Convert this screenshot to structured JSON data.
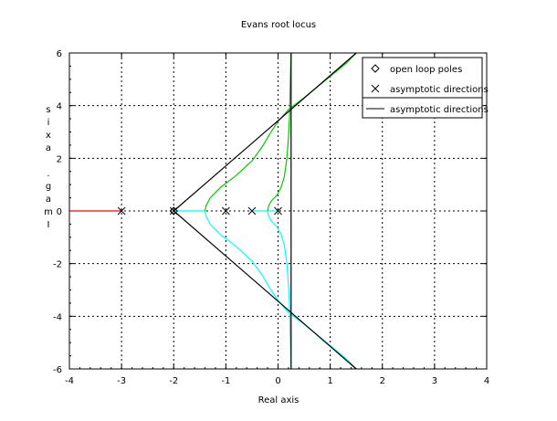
{
  "chart_data": {
    "type": "line",
    "title": "Evans root locus",
    "xlabel": "Real axis",
    "ylabel": "Imag. axis",
    "xlim": [
      -4,
      4
    ],
    "ylim": [
      -6,
      6
    ],
    "x_ticks": [
      "-4",
      "-3",
      "-2",
      "-1",
      "0",
      "1",
      "2",
      "3",
      "4"
    ],
    "y_ticks": [
      "-6",
      "-4",
      "-2",
      "0",
      "2",
      "4",
      "6"
    ],
    "grid": true,
    "legend_position": "top-right",
    "legend": [
      {
        "label": "open loop poles",
        "marker": "diamond"
      },
      {
        "label": "asymptotic directions",
        "marker": "x"
      },
      {
        "label": "asymptotic directions",
        "marker": "line"
      }
    ],
    "open_loop_markers": [
      {
        "x": -3,
        "y": 0
      },
      {
        "x": -2,
        "y": 0
      },
      {
        "x": -1,
        "y": 0
      },
      {
        "x": -0.5,
        "y": 0
      },
      {
        "x": 0,
        "y": 0
      }
    ],
    "series": [
      {
        "color": "#ff0000",
        "x": [
          -4,
          -3
        ],
        "y": [
          0,
          0
        ]
      },
      {
        "color": "#00ffff",
        "x": [
          -2,
          -1.5,
          -1.4
        ],
        "y": [
          0,
          0,
          0
        ]
      },
      {
        "color": "#00ffff",
        "x": [
          -0.5,
          -0.2
        ],
        "y": [
          0,
          0
        ]
      },
      {
        "color": "#00ffff",
        "x": [
          -0.2,
          0
        ],
        "y": [
          0,
          0
        ]
      },
      {
        "color": "#00cc00",
        "x": [
          -1.4,
          -1.38,
          -1.3,
          -1.1,
          -0.8,
          -0.5,
          -0.3,
          -0.15,
          0.0,
          0.2,
          0.5,
          0.9,
          1.3,
          1.5
        ],
        "y": [
          0,
          0.2,
          0.5,
          0.9,
          1.35,
          1.9,
          2.45,
          2.95,
          3.4,
          3.85,
          4.3,
          4.95,
          5.6,
          6
        ]
      },
      {
        "color": "#00ffff",
        "x": [
          -1.4,
          -1.38,
          -1.3,
          -1.1,
          -0.8,
          -0.5,
          -0.3,
          -0.15,
          0.0,
          0.2,
          0.5,
          0.9,
          1.3,
          1.5
        ],
        "y": [
          0,
          -0.2,
          -0.5,
          -0.9,
          -1.35,
          -1.9,
          -2.45,
          -2.95,
          -3.4,
          -3.85,
          -4.3,
          -4.95,
          -5.6,
          -6
        ]
      },
      {
        "color": "#00cc00",
        "x": [
          -0.2,
          -0.18,
          -0.12,
          -0.02,
          0.06,
          0.12,
          0.17,
          0.2,
          0.22,
          0.23,
          0.24,
          0.25
        ],
        "y": [
          0,
          0.2,
          0.4,
          0.6,
          0.9,
          1.3,
          2.0,
          2.8,
          3.6,
          4.5,
          5.3,
          6
        ]
      },
      {
        "color": "#00ffff",
        "x": [
          -0.2,
          -0.18,
          -0.12,
          -0.02,
          0.06,
          0.12,
          0.17,
          0.2,
          0.22,
          0.23,
          0.24,
          0.25
        ],
        "y": [
          0,
          -0.2,
          -0.4,
          -0.6,
          -0.9,
          -1.3,
          -2.0,
          -2.8,
          -3.6,
          -4.5,
          -5.3,
          -6
        ]
      },
      {
        "color": "#000000",
        "x": [
          -2,
          1.5
        ],
        "y": [
          0,
          6
        ]
      },
      {
        "color": "#000000",
        "x": [
          -2,
          1.5
        ],
        "y": [
          0,
          -6
        ]
      },
      {
        "color": "#000000",
        "x": [
          0.25,
          0.25
        ],
        "y": [
          -6,
          6
        ]
      }
    ]
  }
}
